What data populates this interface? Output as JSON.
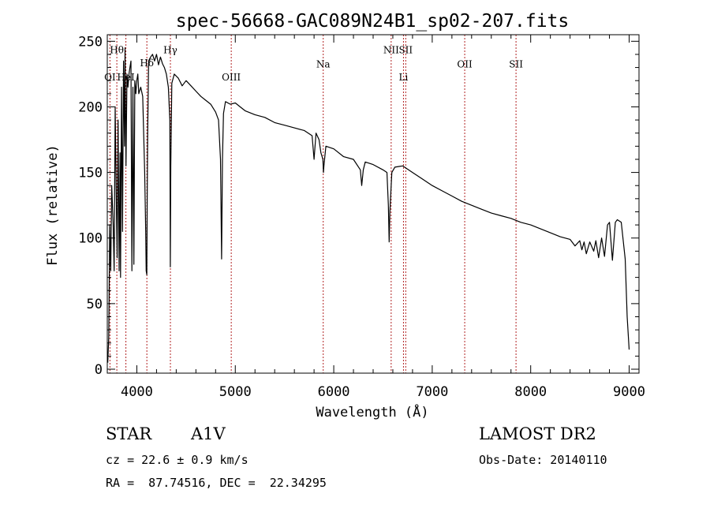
{
  "chart_data": {
    "type": "line",
    "title": "spec-56668-GAC089N24B1_sp02-207.fits",
    "xlabel": "Wavelength (Å)",
    "ylabel": "Flux (relative)",
    "xlim": [
      3700,
      9100
    ],
    "ylim": [
      -3,
      255
    ],
    "x_ticks": [
      4000,
      5000,
      6000,
      7000,
      8000,
      9000
    ],
    "y_ticks": [
      0,
      50,
      100,
      150,
      200,
      250
    ],
    "x_tick_labels": [
      "4000",
      "5000",
      "6000",
      "7000",
      "8000",
      "9000"
    ],
    "y_tick_labels": [
      "0",
      "50",
      "100",
      "150",
      "200",
      "250"
    ],
    "series": [
      {
        "name": "spectrum",
        "color": "#000000",
        "x": [
          3705,
          3715,
          3725,
          3735,
          3745,
          3760,
          3770,
          3780,
          3790,
          3800,
          3810,
          3820,
          3830,
          3835,
          3845,
          3855,
          3865,
          3875,
          3880,
          3890,
          3900,
          3910,
          3920,
          3930,
          3940,
          3950,
          3960,
          3970,
          3980,
          3990,
          4000,
          4010,
          4020,
          4040,
          4060,
          4080,
          4090,
          4095,
          4101,
          4105,
          4110,
          4120,
          4140,
          4160,
          4180,
          4200,
          4220,
          4240,
          4260,
          4280,
          4300,
          4320,
          4335,
          4340,
          4345,
          4355,
          4380,
          4420,
          4460,
          4500,
          4550,
          4600,
          4650,
          4700,
          4750,
          4800,
          4830,
          4850,
          4861,
          4870,
          4880,
          4900,
          4950,
          5000,
          5050,
          5100,
          5200,
          5300,
          5400,
          5500,
          5600,
          5700,
          5780,
          5800,
          5820,
          5850,
          5870,
          5890,
          5895,
          5900,
          5920,
          6000,
          6100,
          6200,
          6270,
          6284,
          6300,
          6320,
          6400,
          6500,
          6540,
          6555,
          6563,
          6570,
          6590,
          6620,
          6700,
          6800,
          6900,
          7000,
          7100,
          7200,
          7300,
          7400,
          7500,
          7600,
          7700,
          7800,
          7900,
          8000,
          8100,
          8200,
          8300,
          8400,
          8450,
          8498,
          8520,
          8542,
          8565,
          8600,
          8640,
          8662,
          8690,
          8720,
          8750,
          8780,
          8800,
          8830,
          8860,
          8880,
          8920,
          8960,
          8980,
          9000
        ],
        "y": [
          5,
          25,
          110,
          75,
          140,
          110,
          75,
          200,
          140,
          85,
          190,
          75,
          165,
          70,
          215,
          105,
          235,
          170,
          245,
          155,
          225,
          215,
          225,
          230,
          235,
          75,
          215,
          80,
          220,
          210,
          220,
          225,
          210,
          215,
          208,
          150,
          105,
          75,
          72,
          130,
          180,
          235,
          238,
          240,
          235,
          240,
          232,
          238,
          233,
          230,
          225,
          215,
          190,
          78,
          155,
          218,
          225,
          222,
          216,
          220,
          216,
          212,
          208,
          205,
          202,
          196,
          190,
          160,
          84,
          160,
          195,
          204,
          202,
          203,
          200,
          197,
          194,
          192,
          188,
          186,
          184,
          182,
          178,
          160,
          180,
          175,
          165,
          160,
          150,
          155,
          170,
          168,
          162,
          160,
          152,
          140,
          152,
          158,
          156,
          152,
          150,
          125,
          97,
          120,
          150,
          154,
          155,
          150,
          145,
          140,
          136,
          132,
          128,
          125,
          122,
          119,
          117,
          115,
          112,
          110,
          107,
          104,
          101,
          99,
          94,
          98,
          91,
          97,
          88,
          97,
          90,
          98,
          85,
          100,
          86,
          110,
          112,
          83,
          112,
          114,
          112,
          84,
          40,
          15
        ]
      }
    ],
    "lines": [
      {
        "name": "OI",
        "x": 3727,
        "label": "OI",
        "label_y": 220
      },
      {
        "name": "Hθ",
        "x": 3797,
        "label": "Hθ",
        "label_y": 241
      },
      {
        "name": "HeI",
        "x": 3889,
        "label": "HeI",
        "label_y": 220
      },
      {
        "name": "Hδ",
        "x": 4102,
        "label": "Hδ",
        "label_y": 231
      },
      {
        "name": "Hγ",
        "x": 4341,
        "label": "Hγ",
        "label_y": 241
      },
      {
        "name": "OIII",
        "x": 4959,
        "label": "OIII",
        "label_y": 220
      },
      {
        "name": "Na",
        "x": 5893,
        "label": "Na",
        "label_y": 230
      },
      {
        "name": "NII",
        "x": 6583,
        "label": "NII",
        "label_y": 241
      },
      {
        "name": "Li",
        "x": 6708,
        "label": "Li",
        "label_y": 220
      },
      {
        "name": "SII",
        "x": 6731,
        "label": "SII",
        "label_y": 241
      },
      {
        "name": "OII",
        "x": 7330,
        "label": "OII",
        "label_y": 230
      },
      {
        "name": "SII-2",
        "x": 7851,
        "label": "SII",
        "label_y": 230
      }
    ]
  },
  "info": {
    "object_type": "STAR",
    "subclass": "A1V",
    "survey": "LAMOST DR2",
    "redshift": "cz = 22.6 ± 0.9 km/s",
    "obs_date": "Obs-Date: 20140110",
    "coords": "RA =  87.74516, DEC =  22.34295"
  },
  "colors": {
    "line_marker": "#b22222",
    "spectrum": "#000000",
    "axes": "#000000"
  }
}
